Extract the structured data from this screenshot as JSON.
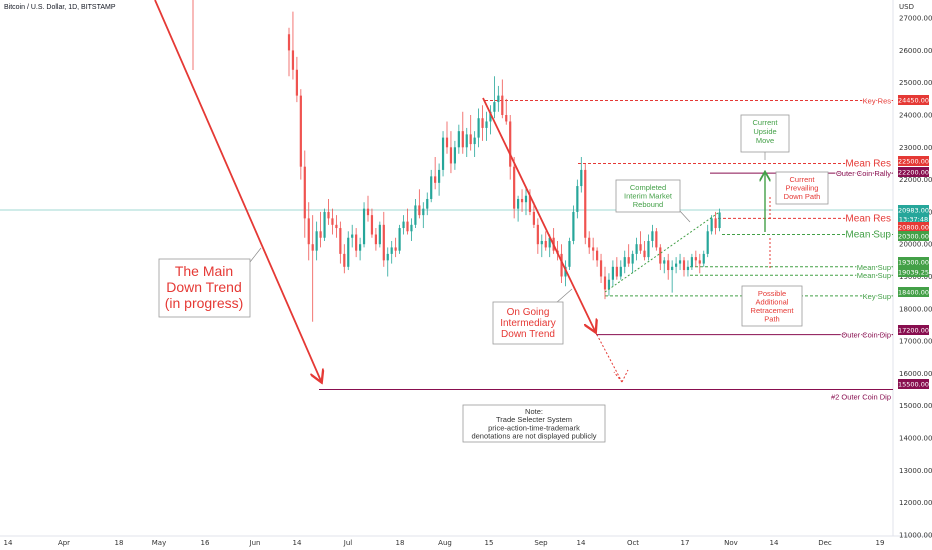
{
  "header": {
    "symbol": "Bitcoin / U.S. Dollar, 1D, BITSTAMP",
    "currency": "USD"
  },
  "colors": {
    "red": "#e53935",
    "green": "#26a69a",
    "maroon": "#880e4f",
    "teal_line": "#80cbc4"
  },
  "chart_data": {
    "type": "candlestick",
    "y_axis": {
      "ticks": [
        11000,
        12000,
        13000,
        14000,
        15000,
        16000,
        17000,
        18000,
        19000,
        20000,
        21000,
        22000,
        23000,
        24000,
        25000,
        26000,
        27000
      ],
      "tick_labels": [
        "11000.00",
        "12000.00",
        "13000.00",
        "14000.00",
        "15000.00",
        "16000.00",
        "17000.00",
        "18000.00",
        "19000.00",
        "20000.00",
        "21000.00",
        "22000.00",
        "23000.00",
        "24000.00",
        "25000.00",
        "26000.00",
        "27000.00"
      ]
    },
    "x_axis": {
      "tick_labels": [
        "14",
        "Apr",
        "18",
        "May",
        "16",
        "Jun",
        "14",
        "Jul",
        "18",
        "Aug",
        "15",
        "Sep",
        "14",
        "Oct",
        "17",
        "Nov",
        "14",
        "Dec",
        "19"
      ]
    },
    "price_labels": [
      {
        "text": "24450.00",
        "color": "#e53935"
      },
      {
        "text": "22500.00",
        "color": "#e53935"
      },
      {
        "text": "22200.00",
        "color": "#880e4f"
      },
      {
        "text": "20983.00",
        "color": "#26a69a"
      },
      {
        "text": "13:37:48",
        "color": "#26a69a"
      },
      {
        "text": "20800.00",
        "color": "#e53935"
      },
      {
        "text": "20300.00",
        "color": "#43a047"
      },
      {
        "text": "19300.00",
        "color": "#43a047"
      },
      {
        "text": "19039.25",
        "color": "#43a047"
      },
      {
        "text": "18400.00",
        "color": "#43a047"
      },
      {
        "text": "17200.00",
        "color": "#880e4f"
      },
      {
        "text": "15500.00",
        "color": "#880e4f"
      }
    ],
    "levels": [
      {
        "name": "Key Res",
        "value": 24450,
        "color": "#e53935"
      },
      {
        "name": "Mean Res",
        "value": 22500,
        "color": "#e53935"
      },
      {
        "name": "Outer Coin Rally",
        "value": 22200,
        "color": "#880e4f"
      },
      {
        "name": "Mean Res",
        "value": 20800,
        "color": "#e53935"
      },
      {
        "name": "Mean Sup",
        "value": 20300,
        "color": "#43a047"
      },
      {
        "name": "Mean Sup",
        "value": 19300,
        "color": "#43a047"
      },
      {
        "name": "Mean Sup",
        "value": 19039.25,
        "color": "#43a047"
      },
      {
        "name": "Key Sup",
        "value": 18400,
        "color": "#43a047"
      },
      {
        "name": "Outer Coin Dip",
        "value": 17200,
        "color": "#880e4f"
      },
      {
        "name": "#2 Outer Coin Dip",
        "value": 15500,
        "color": "#880e4f"
      }
    ],
    "candles": [
      [
        26500,
        26700,
        25200,
        26000
      ],
      [
        26000,
        27200,
        25100,
        25400
      ],
      [
        25400,
        25800,
        24400,
        24600
      ],
      [
        24600,
        24800,
        22000,
        22400
      ],
      [
        22400,
        22900,
        20200,
        20800
      ],
      [
        20800,
        21300,
        19500,
        20000
      ],
      [
        20000,
        20900,
        17600,
        19800
      ],
      [
        19800,
        20700,
        19500,
        20400
      ],
      [
        20400,
        21000,
        19900,
        20200
      ],
      [
        20200,
        21100,
        20100,
        21000
      ],
      [
        21000,
        21400,
        20600,
        20800
      ],
      [
        20800,
        21100,
        20300,
        20600
      ],
      [
        20600,
        20900,
        20200,
        20500
      ],
      [
        20500,
        20700,
        19400,
        19700
      ],
      [
        19700,
        20000,
        19100,
        19300
      ],
      [
        19300,
        20400,
        19200,
        20200
      ],
      [
        20200,
        20600,
        19900,
        20300
      ],
      [
        20300,
        20500,
        19600,
        19800
      ],
      [
        19800,
        20200,
        19500,
        20000
      ],
      [
        20000,
        21300,
        19900,
        21100
      ],
      [
        21100,
        21500,
        20700,
        20900
      ],
      [
        20900,
        21100,
        20200,
        20300
      ],
      [
        20300,
        20500,
        19800,
        20000
      ],
      [
        20000,
        20700,
        19900,
        20600
      ],
      [
        20600,
        21000,
        19300,
        19500
      ],
      [
        19500,
        19900,
        19000,
        19700
      ],
      [
        19700,
        20100,
        19400,
        19900
      ],
      [
        19900,
        20200,
        19600,
        19800
      ],
      [
        19800,
        20600,
        19700,
        20500
      ],
      [
        20500,
        20900,
        20300,
        20700
      ],
      [
        20700,
        21100,
        20300,
        20400
      ],
      [
        20400,
        20800,
        20100,
        20600
      ],
      [
        20600,
        21400,
        20500,
        21200
      ],
      [
        21200,
        21700,
        20800,
        20900
      ],
      [
        20900,
        21300,
        20500,
        21100
      ],
      [
        21100,
        21600,
        20900,
        21400
      ],
      [
        21400,
        22300,
        21300,
        22100
      ],
      [
        22100,
        22700,
        21700,
        21900
      ],
      [
        21900,
        22500,
        21500,
        22300
      ],
      [
        22300,
        23500,
        22100,
        23300
      ],
      [
        23300,
        23800,
        22800,
        23000
      ],
      [
        23000,
        23500,
        22200,
        22500
      ],
      [
        22500,
        23200,
        22300,
        23000
      ],
      [
        23000,
        23700,
        22800,
        23500
      ],
      [
        23500,
        24100,
        22800,
        23000
      ],
      [
        23000,
        23600,
        22700,
        23400
      ],
      [
        23400,
        24000,
        22900,
        23100
      ],
      [
        23100,
        23500,
        22700,
        23300
      ],
      [
        23300,
        24200,
        23000,
        23900
      ],
      [
        23900,
        24300,
        23200,
        23600
      ],
      [
        23600,
        24100,
        23200,
        23800
      ],
      [
        23800,
        24300,
        23400,
        24100
      ],
      [
        24100,
        25200,
        23900,
        24400
      ],
      [
        24400,
        24900,
        24100,
        24600
      ],
      [
        24600,
        25100,
        23900,
        24000
      ],
      [
        24000,
        24500,
        23700,
        23800
      ],
      [
        23800,
        24000,
        22000,
        22400
      ],
      [
        22400,
        22700,
        20800,
        21100
      ],
      [
        21100,
        21500,
        20700,
        21400
      ],
      [
        21400,
        21700,
        21000,
        21300
      ],
      [
        21300,
        21800,
        20900,
        21500
      ],
      [
        21500,
        21700,
        20900,
        21000
      ],
      [
        21000,
        21300,
        20500,
        20600
      ],
      [
        20600,
        20800,
        19700,
        20000
      ],
      [
        20000,
        20300,
        19600,
        20100
      ],
      [
        20100,
        20400,
        19800,
        19900
      ],
      [
        19900,
        20300,
        19600,
        20200
      ],
      [
        20200,
        20500,
        19700,
        19800
      ],
      [
        19800,
        20100,
        19500,
        19700
      ],
      [
        19700,
        20000,
        18800,
        19000
      ],
      [
        19000,
        19500,
        18700,
        19300
      ],
      [
        19300,
        20200,
        19200,
        20100
      ],
      [
        20100,
        21200,
        20000,
        21000
      ],
      [
        21000,
        22000,
        20800,
        21800
      ],
      [
        21800,
        22700,
        21600,
        22300
      ],
      [
        22300,
        22500,
        20000,
        20200
      ],
      [
        20200,
        20400,
        19700,
        19900
      ],
      [
        19900,
        20200,
        19500,
        19800
      ],
      [
        19800,
        19900,
        19300,
        19500
      ],
      [
        19500,
        19700,
        18800,
        19000
      ],
      [
        19000,
        19300,
        18300,
        18600
      ],
      [
        18600,
        19100,
        18400,
        18900
      ],
      [
        18900,
        19500,
        18700,
        19300
      ],
      [
        19300,
        19600,
        18900,
        19000
      ],
      [
        19000,
        19500,
        18900,
        19300
      ],
      [
        19300,
        19800,
        19100,
        19600
      ],
      [
        19600,
        20000,
        19300,
        19400
      ],
      [
        19400,
        19800,
        19100,
        19700
      ],
      [
        19700,
        20200,
        19500,
        20000
      ],
      [
        20000,
        20400,
        19700,
        19800
      ],
      [
        19800,
        20100,
        19500,
        19600
      ],
      [
        19600,
        20300,
        19500,
        20100
      ],
      [
        20100,
        20600,
        19900,
        20400
      ],
      [
        20400,
        20500,
        19800,
        19900
      ],
      [
        19900,
        20000,
        19200,
        19400
      ],
      [
        19400,
        19600,
        19100,
        19500
      ],
      [
        19500,
        19700,
        18900,
        19200
      ],
      [
        19200,
        19500,
        18500,
        19300
      ],
      [
        19300,
        19600,
        19100,
        19400
      ],
      [
        19400,
        19700,
        19200,
        19500
      ],
      [
        19500,
        19600,
        19000,
        19200
      ],
      [
        19200,
        19500,
        19000,
        19300
      ],
      [
        19300,
        19700,
        19200,
        19600
      ],
      [
        19600,
        19800,
        19300,
        19500
      ],
      [
        19500,
        19700,
        19100,
        19400
      ],
      [
        19400,
        19800,
        19300,
        19700
      ],
      [
        19700,
        20600,
        19600,
        20400
      ],
      [
        20400,
        20900,
        20300,
        20800
      ],
      [
        20800,
        21000,
        20300,
        20500
      ],
      [
        20500,
        21100,
        20400,
        20983
      ]
    ]
  },
  "annotations": {
    "main_trend": "The Main Down Trend (in progress)",
    "intermediary_trend": "On Going Intermediary Down Trend",
    "completed_rebound": "Completed Interim Market Rebound",
    "upside_move": "Current Upside Move",
    "prevailing_path": "Current Prevailing Down Path",
    "retracement": "Possible Additional Retracement Path",
    "note": "Note: Trade Selecter System price-action-time-trademark denotations are not displayed publicly"
  }
}
